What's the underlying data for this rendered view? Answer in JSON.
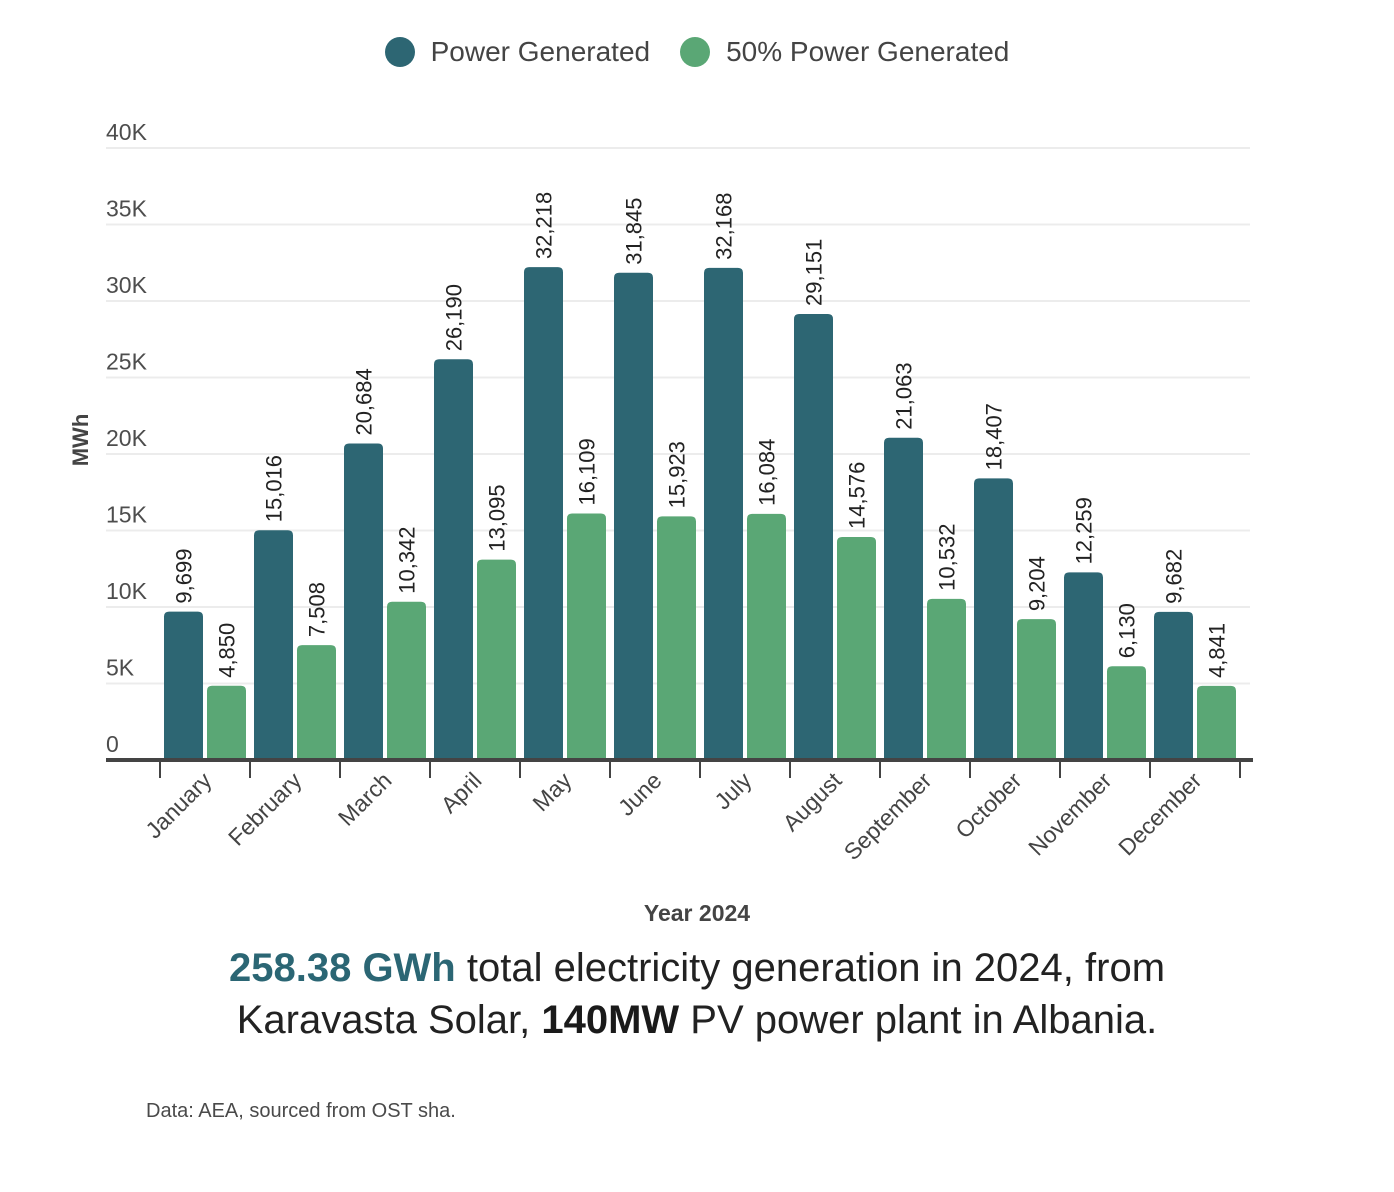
{
  "legend": [
    {
      "label": "Power Generated",
      "color": "#2d6673"
    },
    {
      "label": "50% Power Generated",
      "color": "#5aa775"
    }
  ],
  "chart_data": {
    "type": "bar",
    "title": "",
    "xlabel": "Year 2024",
    "ylabel": "MWh",
    "ylim": [
      0,
      40000
    ],
    "yticks": [
      0,
      5000,
      10000,
      15000,
      20000,
      25000,
      30000,
      35000,
      40000
    ],
    "ytick_labels": [
      "0",
      "5K",
      "10K",
      "15K",
      "20K",
      "25K",
      "30K",
      "35K",
      "40K"
    ],
    "grid": true,
    "legend_position": "top-center",
    "categories": [
      "January",
      "February",
      "March",
      "April",
      "May",
      "June",
      "July",
      "August",
      "September",
      "October",
      "November",
      "December"
    ],
    "series": [
      {
        "name": "Power Generated",
        "color": "#2d6673",
        "values": [
          9699,
          15016,
          20684,
          26190,
          32218,
          31845,
          32168,
          29151,
          21063,
          18407,
          12259,
          9682
        ]
      },
      {
        "name": "50% Power Generated",
        "color": "#5aa775",
        "values": [
          4850,
          7508,
          10342,
          13095,
          16109,
          15923,
          16084,
          14576,
          10532,
          9204,
          6130,
          4841
        ]
      }
    ]
  },
  "headline": {
    "total": "258.38 GWh",
    "text1": " total electricity generation in 2024, from Karavasta Solar, ",
    "capacity": "140MW",
    "text2": " PV power plant in Albania."
  },
  "source": "Data: AEA, sourced from OST sha."
}
